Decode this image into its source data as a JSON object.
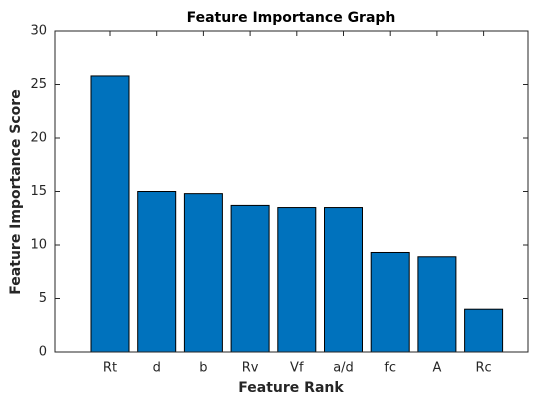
{
  "chart_data": {
    "type": "bar",
    "title": "Feature Importance Graph",
    "x_label": "Feature Rank",
    "y_label": "Feature Importance Score",
    "categories": [
      "Rt",
      "d",
      "b",
      "Rv",
      "Vf",
      "a/d",
      "fc",
      "A",
      "Rc"
    ],
    "values": [
      25.8,
      15.0,
      14.8,
      13.7,
      13.5,
      13.5,
      9.3,
      8.9,
      4.0
    ],
    "color": "#0072bd",
    "ylim": [
      0,
      30
    ],
    "yticks": [
      0,
      5,
      10,
      15,
      20,
      25,
      30
    ],
    "grid": false
  }
}
